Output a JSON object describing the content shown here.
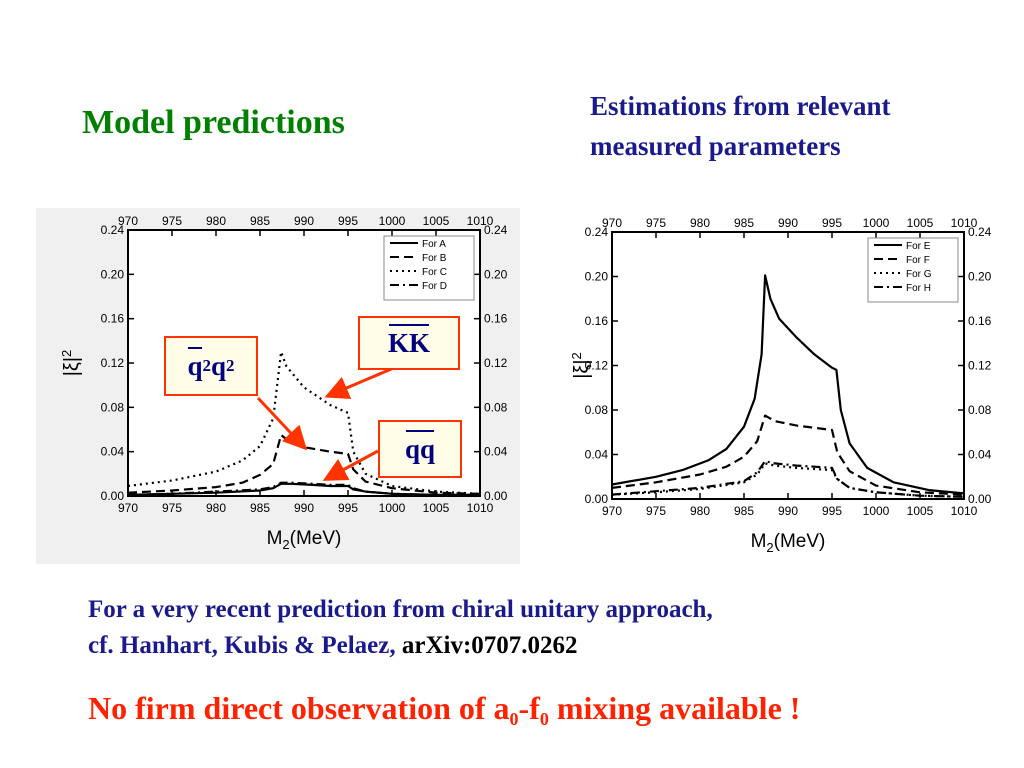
{
  "slide": {
    "title_left": "Model predictions",
    "title_right_line1": "Estimations from relevant",
    "title_right_line2": "measured parameters",
    "callouts": {
      "q2q2": {
        "base1": "q",
        "sup1": "2",
        "base2": "q",
        "sup2": "2"
      },
      "kk": "KK",
      "qq": "qq"
    },
    "note_line1": "For a very recent prediction from chiral unitary approach,",
    "note_line2_prefix": "cf.  Hanhart, Kubis & Pelaez,",
    "note_line2_ref": "arXiv:0707.0262",
    "conclusion": {
      "p1": "No firm direct observation of a",
      "sub1": "0",
      "dash": "-f",
      "sub2": "0",
      "p2": " mixing available !"
    },
    "colors": {
      "title_green": "#008000",
      "navy": "#1a1a8c",
      "red": "#ff2200",
      "arrow": "#ff3300"
    },
    "icons": {
      "arrow": "red-arrow"
    }
  },
  "chart_data": [
    {
      "type": "line",
      "xlabel": "M2(MeV)",
      "ylabel": "|ξ|2",
      "xlim": [
        970,
        1010
      ],
      "ylim": [
        0,
        0.24
      ],
      "x_ticks": [
        "970",
        "975",
        "980",
        "985",
        "990",
        "995",
        "1000",
        "1005",
        "1010"
      ],
      "y_ticks": [
        "0.00",
        "0.04",
        "0.08",
        "0.12",
        "0.16",
        "0.20",
        "0.24"
      ],
      "legend": "top-right",
      "series": [
        {
          "name": "For  A",
          "style": "solid",
          "x": [
            970,
            975,
            980,
            985,
            986.5,
            987.4,
            988.5,
            991,
            993,
            995,
            995.6,
            997,
            1000,
            1005,
            1010
          ],
          "y": [
            0.001,
            0.002,
            0.003,
            0.005,
            0.007,
            0.011,
            0.011,
            0.01,
            0.009,
            0.009,
            0.006,
            0.004,
            0.002,
            0.001,
            0.001
          ]
        },
        {
          "name": "For  B",
          "style": "dash",
          "x": [
            970,
            975,
            980,
            983,
            985,
            986.5,
            987.4,
            988.5,
            990,
            993,
            995,
            995.6,
            997,
            1000,
            1005,
            1010
          ],
          "y": [
            0.003,
            0.005,
            0.008,
            0.012,
            0.019,
            0.029,
            0.055,
            0.048,
            0.044,
            0.04,
            0.038,
            0.024,
            0.013,
            0.007,
            0.003,
            0.002
          ]
        },
        {
          "name": "For  C",
          "style": "dot",
          "x": [
            970,
            975,
            980,
            983,
            985,
            986.5,
            987.4,
            988,
            990,
            993,
            995,
            995.6,
            997,
            1000,
            1005,
            1010
          ],
          "y": [
            0.009,
            0.014,
            0.022,
            0.032,
            0.045,
            0.07,
            0.13,
            0.117,
            0.098,
            0.082,
            0.075,
            0.04,
            0.02,
            0.009,
            0.004,
            0.002
          ]
        },
        {
          "name": "For  D",
          "style": "dashdot",
          "x": [
            970,
            975,
            980,
            985,
            986.5,
            987.4,
            988.5,
            991,
            993,
            995,
            995.6,
            997,
            1000,
            1005,
            1010
          ],
          "y": [
            0.001,
            0.002,
            0.004,
            0.006,
            0.008,
            0.012,
            0.012,
            0.011,
            0.01,
            0.01,
            0.007,
            0.004,
            0.002,
            0.001,
            0.001
          ]
        }
      ]
    },
    {
      "type": "line",
      "xlabel": "M2(MeV)",
      "ylabel": "|ξ|2",
      "xlim": [
        970,
        1010
      ],
      "ylim": [
        0,
        0.24
      ],
      "x_ticks": [
        "970",
        "975",
        "980",
        "985",
        "990",
        "995",
        "1000",
        "1005",
        "1010"
      ],
      "y_ticks": [
        "0.00",
        "0.04",
        "0.08",
        "0.12",
        "0.16",
        "0.20",
        "0.24"
      ],
      "legend": "top-right",
      "series": [
        {
          "name": "For  E",
          "style": "solid",
          "x": [
            970,
            975,
            978,
            981,
            983,
            985,
            986.2,
            987,
            987.4,
            988,
            989,
            991,
            993,
            995,
            995.5,
            996,
            997,
            999,
            1002,
            1006,
            1010
          ],
          "y": [
            0.013,
            0.02,
            0.026,
            0.035,
            0.045,
            0.065,
            0.09,
            0.13,
            0.201,
            0.18,
            0.162,
            0.145,
            0.13,
            0.118,
            0.116,
            0.08,
            0.05,
            0.028,
            0.015,
            0.008,
            0.005
          ]
        },
        {
          "name": "For  F",
          "style": "dash",
          "x": [
            970,
            975,
            980,
            983,
            985,
            986.5,
            987.4,
            988.5,
            991,
            993,
            995,
            995.6,
            997,
            1000,
            1005,
            1010
          ],
          "y": [
            0.01,
            0.015,
            0.022,
            0.029,
            0.038,
            0.052,
            0.075,
            0.07,
            0.066,
            0.064,
            0.062,
            0.042,
            0.025,
            0.012,
            0.006,
            0.004
          ]
        },
        {
          "name": "For  G",
          "style": "dot",
          "x": [
            970,
            975,
            980,
            985,
            986.5,
            987.4,
            988.5,
            991,
            993,
            995,
            995.6,
            997,
            1000,
            1005,
            1010
          ],
          "y": [
            0.004,
            0.006,
            0.009,
            0.015,
            0.022,
            0.032,
            0.03,
            0.028,
            0.027,
            0.026,
            0.018,
            0.01,
            0.006,
            0.003,
            0.002
          ]
        },
        {
          "name": "For  H",
          "style": "dashdot",
          "x": [
            970,
            975,
            980,
            985,
            986.5,
            987.4,
            988.5,
            991,
            993,
            995,
            995.6,
            997,
            1000,
            1005,
            1010
          ],
          "y": [
            0.004,
            0.007,
            0.01,
            0.016,
            0.024,
            0.034,
            0.032,
            0.03,
            0.029,
            0.028,
            0.018,
            0.01,
            0.006,
            0.003,
            0.002
          ]
        }
      ]
    }
  ]
}
